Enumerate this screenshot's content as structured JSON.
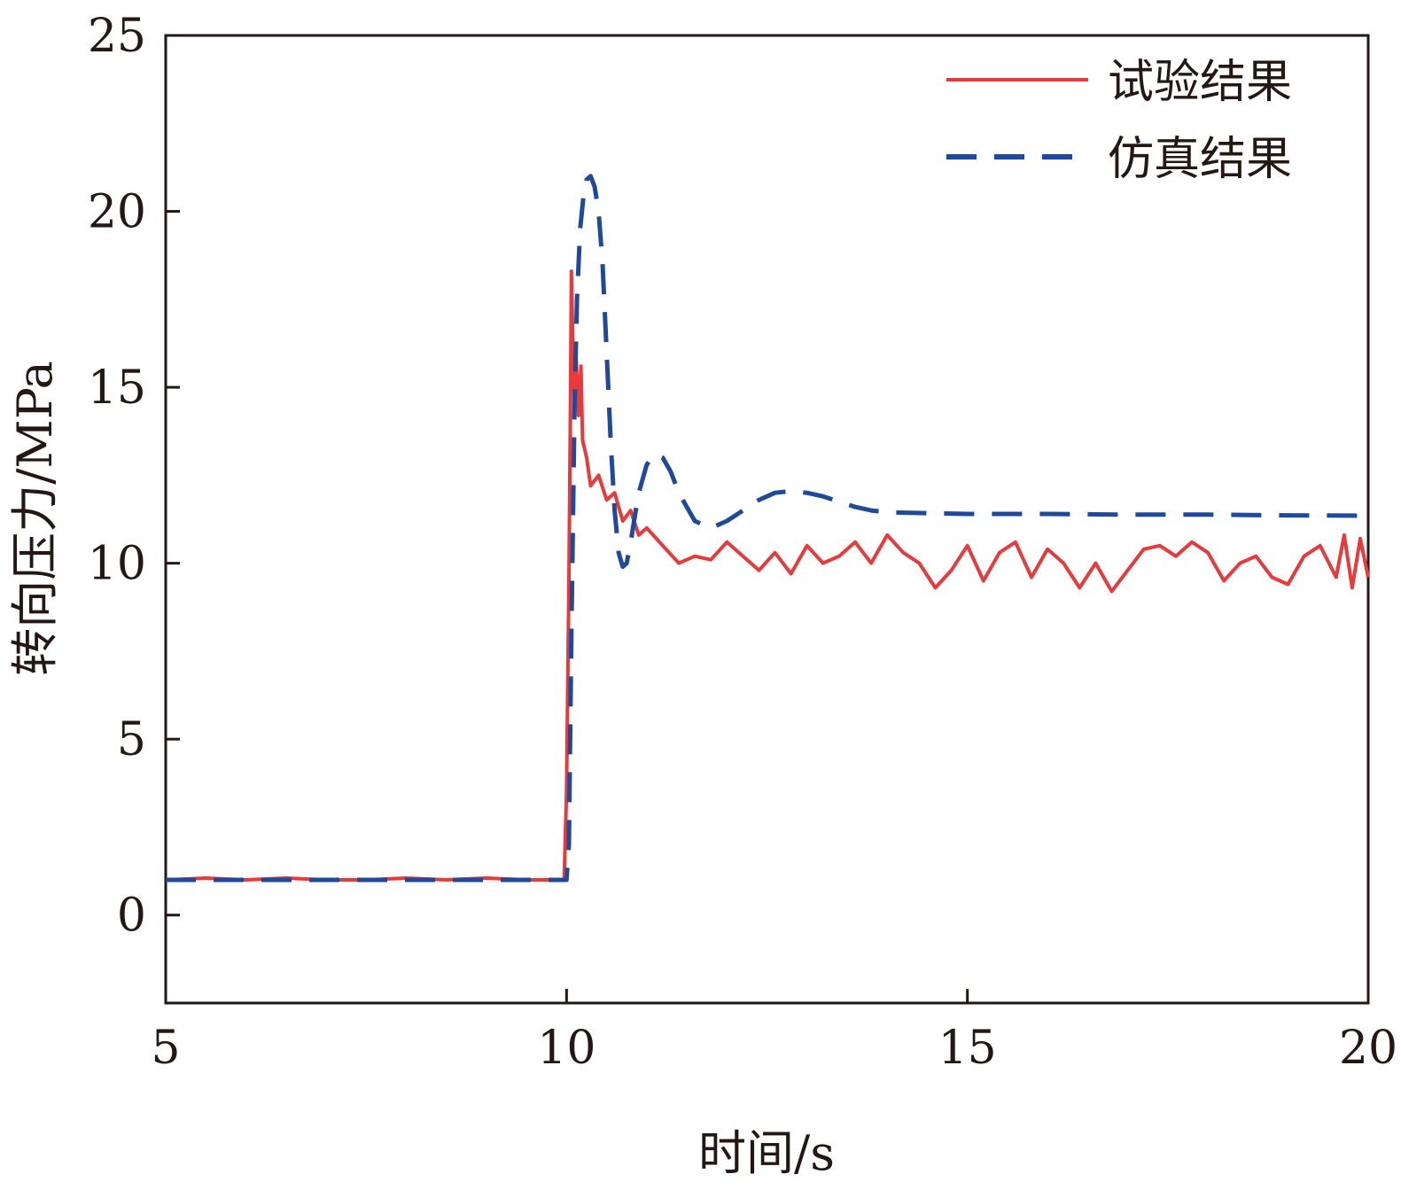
{
  "chart_data": {
    "type": "line",
    "xlabel": "时间/s",
    "ylabel": "转向压力/MPa",
    "xlim": [
      5,
      20
    ],
    "ylim": [
      -2.5,
      25
    ],
    "xticks": [
      5,
      10,
      15,
      20
    ],
    "yticks": [
      0,
      5,
      10,
      15,
      20,
      25
    ],
    "grid": false,
    "legend_position": "top-right",
    "series": [
      {
        "name": "试验结果",
        "color": "#e8393b",
        "style": "solid",
        "x": [
          5.0,
          5.5,
          6.0,
          6.5,
          7.0,
          7.5,
          8.0,
          8.5,
          9.0,
          9.5,
          9.9,
          9.97,
          10.0,
          10.03,
          10.05,
          10.06,
          10.08,
          10.1,
          10.12,
          10.15,
          10.18,
          10.2,
          10.25,
          10.3,
          10.4,
          10.5,
          10.6,
          10.7,
          10.8,
          10.9,
          11.0,
          11.2,
          11.4,
          11.6,
          11.8,
          12.0,
          12.2,
          12.4,
          12.6,
          12.8,
          13.0,
          13.2,
          13.4,
          13.6,
          13.8,
          14.0,
          14.2,
          14.4,
          14.6,
          14.8,
          15.0,
          15.2,
          15.4,
          15.6,
          15.8,
          16.0,
          16.2,
          16.4,
          16.6,
          16.8,
          17.0,
          17.2,
          17.4,
          17.6,
          17.8,
          18.0,
          18.2,
          18.4,
          18.6,
          18.8,
          19.0,
          19.2,
          19.4,
          19.6,
          19.7,
          19.8,
          19.9,
          20.0
        ],
        "values": [
          1.0,
          1.05,
          1.0,
          1.05,
          1.0,
          1.0,
          1.05,
          1.0,
          1.05,
          1.0,
          1.0,
          1.0,
          3.5,
          9.5,
          15.0,
          18.3,
          16.0,
          14.5,
          15.8,
          14.2,
          15.6,
          13.5,
          13.0,
          12.2,
          12.5,
          11.8,
          12.0,
          11.2,
          11.5,
          10.8,
          11.0,
          10.5,
          10.0,
          10.2,
          10.1,
          10.6,
          10.2,
          9.8,
          10.3,
          9.7,
          10.5,
          10.0,
          10.2,
          10.6,
          10.0,
          10.8,
          10.3,
          10.0,
          9.3,
          9.8,
          10.5,
          9.5,
          10.3,
          10.6,
          9.6,
          10.4,
          10.0,
          9.3,
          10.0,
          9.2,
          9.8,
          10.4,
          10.5,
          10.2,
          10.6,
          10.3,
          9.5,
          10.0,
          10.2,
          9.6,
          9.4,
          10.2,
          10.5,
          9.6,
          10.8,
          9.3,
          10.7,
          9.6
        ]
      },
      {
        "name": "仿真结果",
        "color": "#1f4a9c",
        "style": "dashed",
        "x": [
          5.0,
          6.0,
          7.0,
          8.0,
          9.0,
          10.0,
          10.03,
          10.06,
          10.1,
          10.13,
          10.17,
          10.21,
          10.25,
          10.3,
          10.35,
          10.4,
          10.45,
          10.5,
          10.55,
          10.6,
          10.65,
          10.7,
          10.75,
          10.8,
          10.85,
          10.9,
          11.0,
          11.1,
          11.2,
          11.3,
          11.4,
          11.5,
          11.6,
          11.8,
          12.0,
          12.2,
          12.4,
          12.6,
          12.8,
          13.0,
          13.2,
          13.4,
          13.6,
          13.8,
          14.0,
          14.5,
          15.0,
          16.0,
          17.0,
          18.0,
          19.0,
          20.0
        ],
        "values": [
          1.0,
          1.0,
          1.0,
          1.0,
          1.0,
          1.0,
          2.0,
          8.0,
          14.5,
          17.5,
          19.5,
          20.4,
          20.9,
          21.0,
          20.7,
          20.0,
          18.5,
          16.0,
          13.5,
          11.5,
          10.3,
          9.9,
          10.0,
          10.6,
          11.3,
          12.0,
          12.8,
          13.1,
          13.0,
          12.6,
          12.0,
          11.6,
          11.2,
          11.0,
          11.2,
          11.5,
          11.8,
          12.0,
          12.05,
          12.0,
          11.9,
          11.75,
          11.6,
          11.5,
          11.45,
          11.42,
          11.4,
          11.4,
          11.38,
          11.38,
          11.36,
          11.35
        ]
      }
    ]
  }
}
